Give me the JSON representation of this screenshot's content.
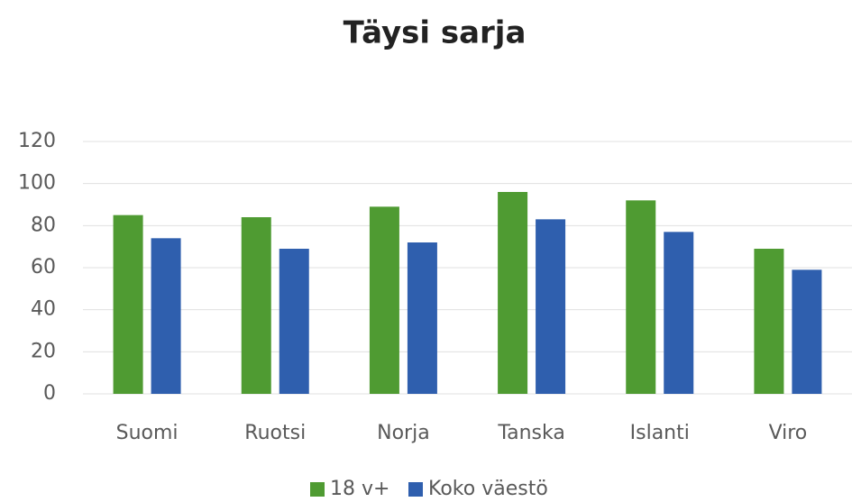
{
  "chart_data": {
    "type": "bar",
    "title": "Täysi sarja",
    "categories": [
      "Suomi",
      "Ruotsi",
      "Norja",
      "Tanska",
      "Islanti",
      "Viro"
    ],
    "series": [
      {
        "name": "18 v+",
        "color": "#4f9b32",
        "values": [
          85,
          84,
          89,
          96,
          92,
          69
        ]
      },
      {
        "name": "Koko väestö",
        "color": "#2f5fae",
        "values": [
          74,
          69,
          72,
          83,
          77,
          59
        ]
      }
    ],
    "ylim": [
      0,
      120
    ],
    "yticks": [
      0,
      20,
      40,
      60,
      80,
      100,
      120
    ],
    "grid": true,
    "legend": "bottom"
  }
}
